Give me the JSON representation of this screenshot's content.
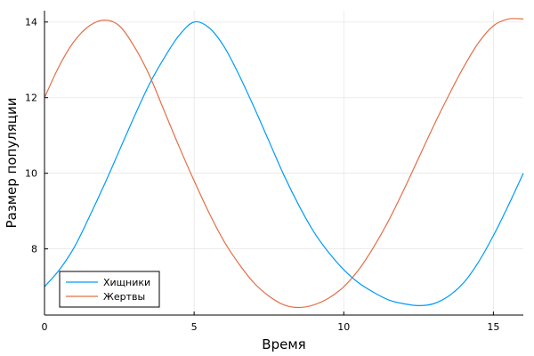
{
  "chart_data": {
    "type": "line",
    "title": "",
    "xlabel": "Время",
    "ylabel": "Размер популяции",
    "xlim": [
      0,
      16
    ],
    "ylim": [
      6.25,
      14.3
    ],
    "xticks": [
      0,
      5,
      10,
      15
    ],
    "yticks": [
      8,
      10,
      12,
      14
    ],
    "grid": true,
    "legend_position": "bottom-left",
    "series": [
      {
        "name": "Хищники",
        "color": "#009af9",
        "points": [
          [
            0,
            7.0
          ],
          [
            0.5,
            7.45
          ],
          [
            1,
            8.05
          ],
          [
            1.5,
            8.85
          ],
          [
            2,
            9.7
          ],
          [
            2.5,
            10.6
          ],
          [
            3,
            11.5
          ],
          [
            3.5,
            12.35
          ],
          [
            4,
            13.05
          ],
          [
            4.5,
            13.65
          ],
          [
            5,
            14.0
          ],
          [
            5.5,
            13.85
          ],
          [
            6,
            13.35
          ],
          [
            6.5,
            12.6
          ],
          [
            7,
            11.75
          ],
          [
            7.5,
            10.85
          ],
          [
            8,
            9.95
          ],
          [
            8.5,
            9.15
          ],
          [
            9,
            8.45
          ],
          [
            9.5,
            7.9
          ],
          [
            10,
            7.45
          ],
          [
            10.5,
            7.1
          ],
          [
            11,
            6.85
          ],
          [
            11.5,
            6.65
          ],
          [
            12,
            6.55
          ],
          [
            12.5,
            6.5
          ],
          [
            13,
            6.55
          ],
          [
            13.5,
            6.75
          ],
          [
            14,
            7.1
          ],
          [
            14.5,
            7.65
          ],
          [
            15,
            8.35
          ],
          [
            15.5,
            9.15
          ],
          [
            16,
            10.0
          ]
        ]
      },
      {
        "name": "Жертвы",
        "color": "#e26f46",
        "points": [
          [
            0,
            12.0
          ],
          [
            0.5,
            12.85
          ],
          [
            1,
            13.5
          ],
          [
            1.5,
            13.9
          ],
          [
            2,
            14.05
          ],
          [
            2.5,
            13.9
          ],
          [
            3,
            13.35
          ],
          [
            3.5,
            12.6
          ],
          [
            4,
            11.65
          ],
          [
            4.5,
            10.7
          ],
          [
            5,
            9.8
          ],
          [
            5.5,
            8.95
          ],
          [
            6,
            8.2
          ],
          [
            6.5,
            7.6
          ],
          [
            7,
            7.1
          ],
          [
            7.5,
            6.75
          ],
          [
            8,
            6.52
          ],
          [
            8.5,
            6.45
          ],
          [
            9,
            6.52
          ],
          [
            9.5,
            6.7
          ],
          [
            10,
            7.0
          ],
          [
            10.5,
            7.45
          ],
          [
            11,
            8.05
          ],
          [
            11.5,
            8.75
          ],
          [
            12,
            9.55
          ],
          [
            12.5,
            10.4
          ],
          [
            13,
            11.25
          ],
          [
            13.5,
            12.05
          ],
          [
            14,
            12.8
          ],
          [
            14.5,
            13.45
          ],
          [
            15,
            13.9
          ],
          [
            15.5,
            14.08
          ],
          [
            16,
            14.08
          ]
        ]
      }
    ]
  }
}
